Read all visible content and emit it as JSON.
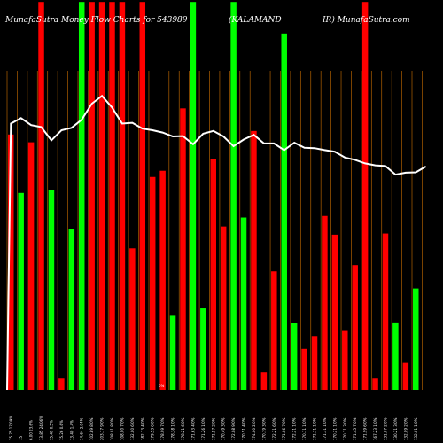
{
  "chart_data": {
    "type": "bar",
    "title_left": "MunafaSutra  Money Flow  Charts for 543989",
    "title_mid": "(KALAMAND",
    "title_right": "IR)  MunafaSutra.com",
    "grid": "vertical",
    "colors": {
      "up": "#00ff00",
      "down": "#ff0000",
      "line": "#ffffff",
      "grid": "#b06000",
      "background": "#000000"
    },
    "bars": [
      {
        "dir": "down",
        "value": 0.655,
        "label": "15.75 17/09%"
      },
      {
        "dir": "up",
        "value": 0.505,
        "label": "15"
      },
      {
        "dir": "down",
        "value": 0.635,
        "label": "6.00 23.6%"
      },
      {
        "dir": "down",
        "value": 0.995,
        "label": "13.85 24.06%"
      },
      {
        "dir": "up",
        "value": 0.512,
        "label": "15.49 0.5%"
      },
      {
        "dir": "down",
        "value": 0.029,
        "label": "15.26 0.6%"
      },
      {
        "dir": "up",
        "value": 0.413,
        "label": "13.40 1.4%"
      },
      {
        "dir": "up",
        "value": 0.995,
        "label": "14.64 2.04%"
      },
      {
        "dir": "down",
        "value": 0.995,
        "label": "102.89 8.0%"
      },
      {
        "dir": "down",
        "value": 0.995,
        "label": "203.17 9.0%"
      },
      {
        "dir": "down",
        "value": 0.995,
        "label": "108.01 8.0%"
      },
      {
        "dir": "down",
        "value": 0.995,
        "label": "108.00 7.0%"
      },
      {
        "dir": "down",
        "value": 0.363,
        "label": "132.00 6.0%"
      },
      {
        "dir": "down",
        "value": 0.995,
        "label": "182.13 4.0%"
      },
      {
        "dir": "down",
        "value": 0.546,
        "label": "179.53 6.0%"
      },
      {
        "dir": "down",
        "value": 0.562,
        "label": "178.99 7.0%"
      },
      {
        "dir": "up",
        "value": 0.19,
        "label": "178.38 1.0%"
      },
      {
        "dir": "down",
        "value": 0.722,
        "label": "178.21 6.0%"
      },
      {
        "dir": "up",
        "value": 0.995,
        "label": "171.63 4.0%"
      },
      {
        "dir": "up",
        "value": 0.209,
        "label": "171.26 1.0%"
      },
      {
        "dir": "down",
        "value": 0.593,
        "label": "171.57 2.0%"
      },
      {
        "dir": "down",
        "value": 0.419,
        "label": "170.49 3.0%"
      },
      {
        "dir": "up",
        "value": 0.995,
        "label": "172.08 9.0%"
      },
      {
        "dir": "up",
        "value": 0.442,
        "label": "170.51 4.0%"
      },
      {
        "dir": "down",
        "value": 0.664,
        "label": "174.00 2.0%"
      },
      {
        "dir": "down",
        "value": 0.045,
        "label": "170.79 3.0%"
      },
      {
        "dir": "down",
        "value": 0.304,
        "label": "172.21 6.0%"
      },
      {
        "dir": "up",
        "value": 0.914,
        "label": "171.06 7.0%"
      },
      {
        "dir": "up",
        "value": 0.172,
        "label": "172.21 1.0%"
      },
      {
        "dir": "down",
        "value": 0.105,
        "label": "170.11 1.0%"
      },
      {
        "dir": "down",
        "value": 0.138,
        "label": "171.11 1.0%"
      },
      {
        "dir": "down",
        "value": 0.446,
        "label": "171.31 1.0%"
      },
      {
        "dir": "down",
        "value": 0.398,
        "label": "170.21 1.0%"
      },
      {
        "dir": "down",
        "value": 0.151,
        "label": "170.11 3.0%"
      },
      {
        "dir": "down",
        "value": 0.32,
        "label": "171.45 7.0%"
      },
      {
        "dir": "down",
        "value": 0.995,
        "label": "171.99 6.0%"
      },
      {
        "dir": "down",
        "value": 0.029,
        "label": "167.23 1.0%"
      },
      {
        "dir": "down",
        "value": 0.401,
        "label": "131.07 2.0%"
      },
      {
        "dir": "up",
        "value": 0.173,
        "label": "130.21 3.0%"
      },
      {
        "dir": "down",
        "value": 0.069,
        "label": "132.09 2.0%"
      },
      {
        "dir": "up",
        "value": 0.26,
        "label": "132.01 1.0%"
      }
    ],
    "line_values": [
      0.683,
      0.697,
      0.679,
      0.674,
      0.64,
      0.666,
      0.672,
      0.693,
      0.734,
      0.754,
      0.724,
      0.683,
      0.685,
      0.67,
      0.666,
      0.66,
      0.65,
      0.651,
      0.63,
      0.657,
      0.664,
      0.65,
      0.625,
      0.642,
      0.654,
      0.632,
      0.632,
      0.615,
      0.634,
      0.621,
      0.62,
      0.615,
      0.611,
      0.596,
      0.59,
      0.581,
      0.576,
      0.574,
      0.552,
      0.557,
      0.558,
      0.573
    ]
  },
  "mid_marker": "0%"
}
